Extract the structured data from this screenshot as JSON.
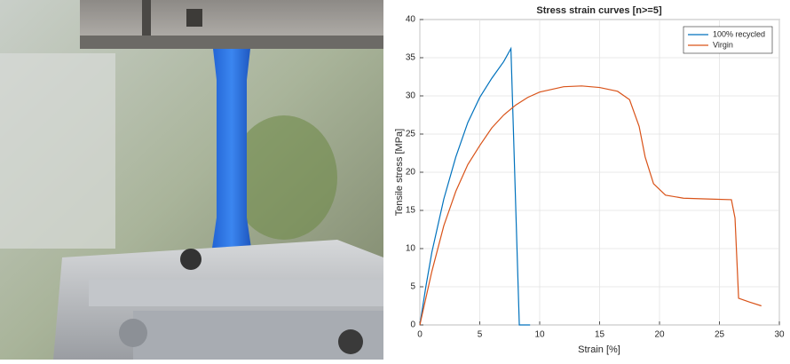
{
  "chart_data": {
    "type": "line",
    "title": "Stress strain curves [n>=5]",
    "x_label": "Strain [%]",
    "y_label": "Tensile stress [MPa]",
    "series": [
      {
        "name": "100% recycled",
        "color": "#0072bd",
        "x": [
          0,
          0.5,
          1,
          2,
          3,
          4,
          5,
          6,
          7,
          7.6,
          8.3,
          9.2
        ],
        "values": [
          0,
          5,
          9.5,
          16.5,
          22,
          26.5,
          29.8,
          32.3,
          34.5,
          36.2,
          0,
          0
        ]
      },
      {
        "name": "Virgin",
        "color": "#d95319",
        "x": [
          0,
          1,
          2,
          3,
          4,
          5,
          6,
          7,
          8,
          9,
          10,
          12,
          13.5,
          15,
          16.5,
          17.5,
          18.3,
          18.8,
          19.5,
          20.5,
          22,
          24,
          26,
          26.3,
          26.6,
          27.5,
          28.5
        ],
        "values": [
          0,
          7,
          13,
          17.5,
          21,
          23.5,
          25.8,
          27.5,
          28.8,
          29.8,
          30.5,
          31.2,
          31.3,
          31.1,
          30.6,
          29.5,
          26,
          22,
          18.5,
          17,
          16.6,
          16.5,
          16.4,
          14,
          3.5,
          3,
          2.5
        ]
      }
    ],
    "xlim": [
      0,
      30
    ],
    "xticks": [
      0,
      5,
      10,
      15,
      20,
      25,
      30
    ],
    "ylim": [
      0,
      40
    ],
    "yticks": [
      0,
      5,
      10,
      15,
      20,
      25,
      30,
      35,
      40
    ],
    "grid": true,
    "legend": "upper right"
  }
}
